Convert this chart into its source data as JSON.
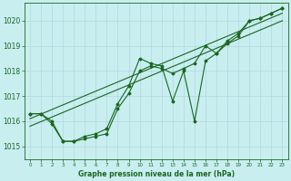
{
  "title": "Graphe pression niveau de la mer (hPa)",
  "bg_color": "#c8eef0",
  "grid_color": "#b0d8dc",
  "line_color": "#1a6620",
  "text_color": "#1a6620",
  "xlim": [
    -0.5,
    23.5
  ],
  "ylim": [
    1014.5,
    1020.7
  ],
  "yticks": [
    1015,
    1016,
    1017,
    1018,
    1019,
    1020
  ],
  "xticks": [
    0,
    1,
    2,
    3,
    4,
    5,
    6,
    7,
    8,
    9,
    10,
    11,
    12,
    13,
    14,
    15,
    16,
    17,
    18,
    19,
    20,
    21,
    22,
    23
  ],
  "series_smooth": [
    [
      1016.3,
      1016.3,
      1016.0,
      1015.2,
      1015.2,
      1015.3,
      1015.4,
      1015.5,
      1016.5,
      1017.1,
      1018.0,
      1018.2,
      1018.1,
      1017.9,
      1018.1,
      1018.3,
      1019.0,
      1018.7,
      1019.2,
      1019.5,
      1020.0,
      1020.1,
      1020.3,
      1020.5
    ]
  ],
  "series_volatile": [
    [
      1016.3,
      1016.3,
      1015.9,
      1015.2,
      1015.2,
      1015.4,
      1015.5,
      1015.7,
      1016.7,
      1017.4,
      1018.5,
      1018.3,
      1018.2,
      1016.8,
      1018.0,
      1016.0,
      1018.4,
      1018.7,
      1019.1,
      1019.4,
      1020.0,
      1020.1,
      1020.3,
      1020.5
    ]
  ],
  "trend_lines": [
    {
      "x": [
        0,
        23
      ],
      "y": [
        1016.1,
        1020.3
      ]
    },
    {
      "x": [
        0,
        23
      ],
      "y": [
        1015.8,
        1020.0
      ]
    }
  ]
}
